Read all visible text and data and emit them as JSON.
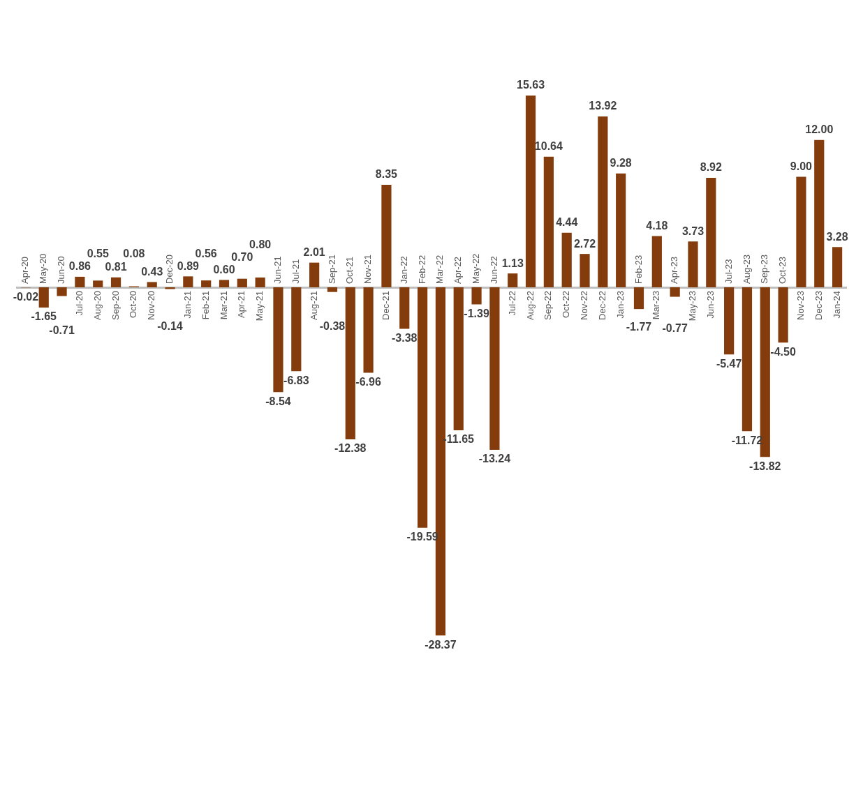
{
  "chart_data": {
    "type": "bar",
    "categories": [
      "Apr-20",
      "May-20",
      "Jun-20",
      "Jul-20",
      "Aug-20",
      "Sep-20",
      "Oct-20",
      "Nov-20",
      "Dec-20",
      "Jan-21",
      "Feb-21",
      "Mar-21",
      "Apr-21",
      "May-21",
      "Jun-21",
      "Jul-21",
      "Aug-21",
      "Sep-21",
      "Oct-21",
      "Nov-21",
      "Dec-21",
      "Jan-22",
      "Feb-22",
      "Mar-22",
      "Apr-22",
      "May-22",
      "Jun-22",
      "Jul-22",
      "Aug-22",
      "Sep-22",
      "Oct-22",
      "Nov-22",
      "Dec-22",
      "Jan-23",
      "Feb-23",
      "Mar-23",
      "Apr-23",
      "May-23",
      "Jun-23",
      "Jul-23",
      "Aug-23",
      "Sep-23",
      "Oct-23",
      "Nov-23",
      "Dec-23",
      "Jan-24"
    ],
    "values": [
      -0.02,
      -1.65,
      -0.71,
      0.86,
      0.55,
      0.81,
      0.08,
      0.43,
      -0.14,
      0.89,
      0.56,
      0.6,
      0.7,
      0.8,
      -8.54,
      -6.83,
      2.01,
      -0.38,
      -12.38,
      -6.96,
      8.35,
      -3.38,
      -19.59,
      -28.37,
      -11.65,
      -1.39,
      -13.24,
      1.13,
      15.63,
      10.64,
      4.44,
      2.72,
      13.92,
      9.28,
      -1.77,
      4.18,
      -0.77,
      3.73,
      8.92,
      -5.47,
      -11.72,
      -13.82,
      -4.5,
      9.0,
      12.0,
      3.28
    ],
    "value_labels": [
      "-0.02",
      "-1.65",
      "-0.71",
      "0.86",
      "0.55",
      "0.81",
      "0.08",
      "0.43",
      "-0.14",
      "0.89",
      "0.56",
      "0.60",
      "0.70",
      "0.80",
      "-8.54",
      "-6.83",
      "2.01",
      "-0.38",
      "-12.38",
      "-6.96",
      "8.35",
      "-3.38",
      "-19.59",
      "-28.37",
      "-11.65",
      "-1.39",
      "-13.24",
      "1.13",
      "15.63",
      "10.64",
      "4.44",
      "2.72",
      "13.92",
      "9.28",
      "-1.77",
      "4.18",
      "-0.77",
      "3.73",
      "8.92",
      "-5.47",
      "-11.72",
      "-13.82",
      "-4.50",
      "9.00",
      "12.00",
      "3.28"
    ],
    "color": "#843c0c",
    "grid": false,
    "legend": false
  }
}
